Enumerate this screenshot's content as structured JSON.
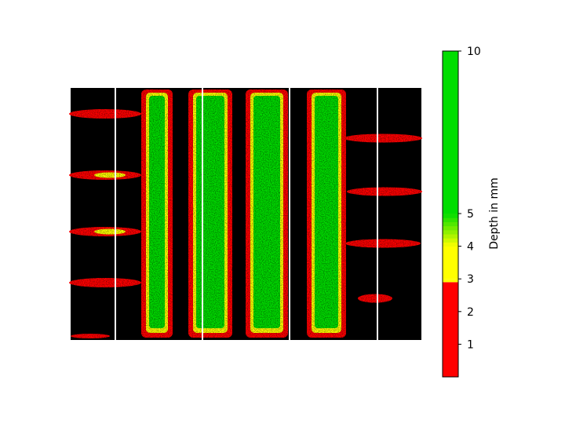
{
  "chart_data": {
    "type": "heatmap",
    "title": "",
    "xlabel": "",
    "ylabel": "",
    "colorbar": {
      "label": "Depth in mm",
      "range": [
        0,
        10
      ],
      "ticks": [
        1,
        2,
        3,
        4,
        5,
        10
      ],
      "tick_labels": [
        "1",
        "2",
        "3",
        "4",
        "5",
        "10"
      ],
      "colormap": [
        {
          "from": 0,
          "to": 2.9,
          "color": "#ff0000"
        },
        {
          "from": 2.9,
          "to": 3.0,
          "color": "#ffff00"
        },
        {
          "from": 3.0,
          "to": 4.0,
          "color": "#ffff00"
        },
        {
          "from": 4.0,
          "to": 5.0,
          "color": "#66dd00"
        },
        {
          "from": 5.0,
          "to": 10.0,
          "color": "#00dd00"
        }
      ]
    },
    "background_color": "#000000",
    "image_axes_visible": false,
    "grid": false,
    "structures": {
      "vertical_grooves": [
        {
          "name": "groove-1",
          "depth_mm_core": 6,
          "rim_depth_mm": 1.5
        },
        {
          "name": "groove-2",
          "depth_mm_core": 7,
          "rim_depth_mm": 1.5
        },
        {
          "name": "groove-3",
          "depth_mm_core": 7,
          "rim_depth_mm": 1.5
        },
        {
          "name": "groove-4",
          "depth_mm_core": 6.5,
          "rim_depth_mm": 1.5
        }
      ],
      "left_slits": [
        {
          "name": "left-slit-1",
          "depth_mm": 1.5
        },
        {
          "name": "left-slit-2",
          "depth_mm": 3.5
        },
        {
          "name": "left-slit-3",
          "depth_mm": 3
        },
        {
          "name": "left-slit-4",
          "depth_mm": 1.5
        }
      ],
      "right_slits": [
        {
          "name": "right-slit-1",
          "depth_mm": 1.5
        },
        {
          "name": "right-slit-2",
          "depth_mm": 1.5
        },
        {
          "name": "right-slit-3",
          "depth_mm": 2
        },
        {
          "name": "right-slit-4",
          "depth_mm": 1
        }
      ],
      "white_reference_lines": 4
    }
  }
}
